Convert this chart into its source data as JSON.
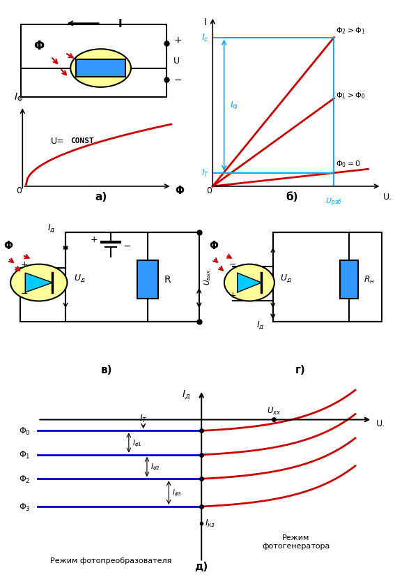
{
  "title": "",
  "bg_color": "#ffffff",
  "panel_a_label": "а)",
  "panel_b_label": "б)",
  "panel_c_label": "в)",
  "panel_d_label": "г)",
  "panel_e_label": "д)",
  "red": "#cc0000",
  "blue": "#0000cc",
  "cyan": "#00aaff",
  "yellow": "#ffff99",
  "dark_blue_fill": "#3366ff",
  "arrow_color": "#000000"
}
